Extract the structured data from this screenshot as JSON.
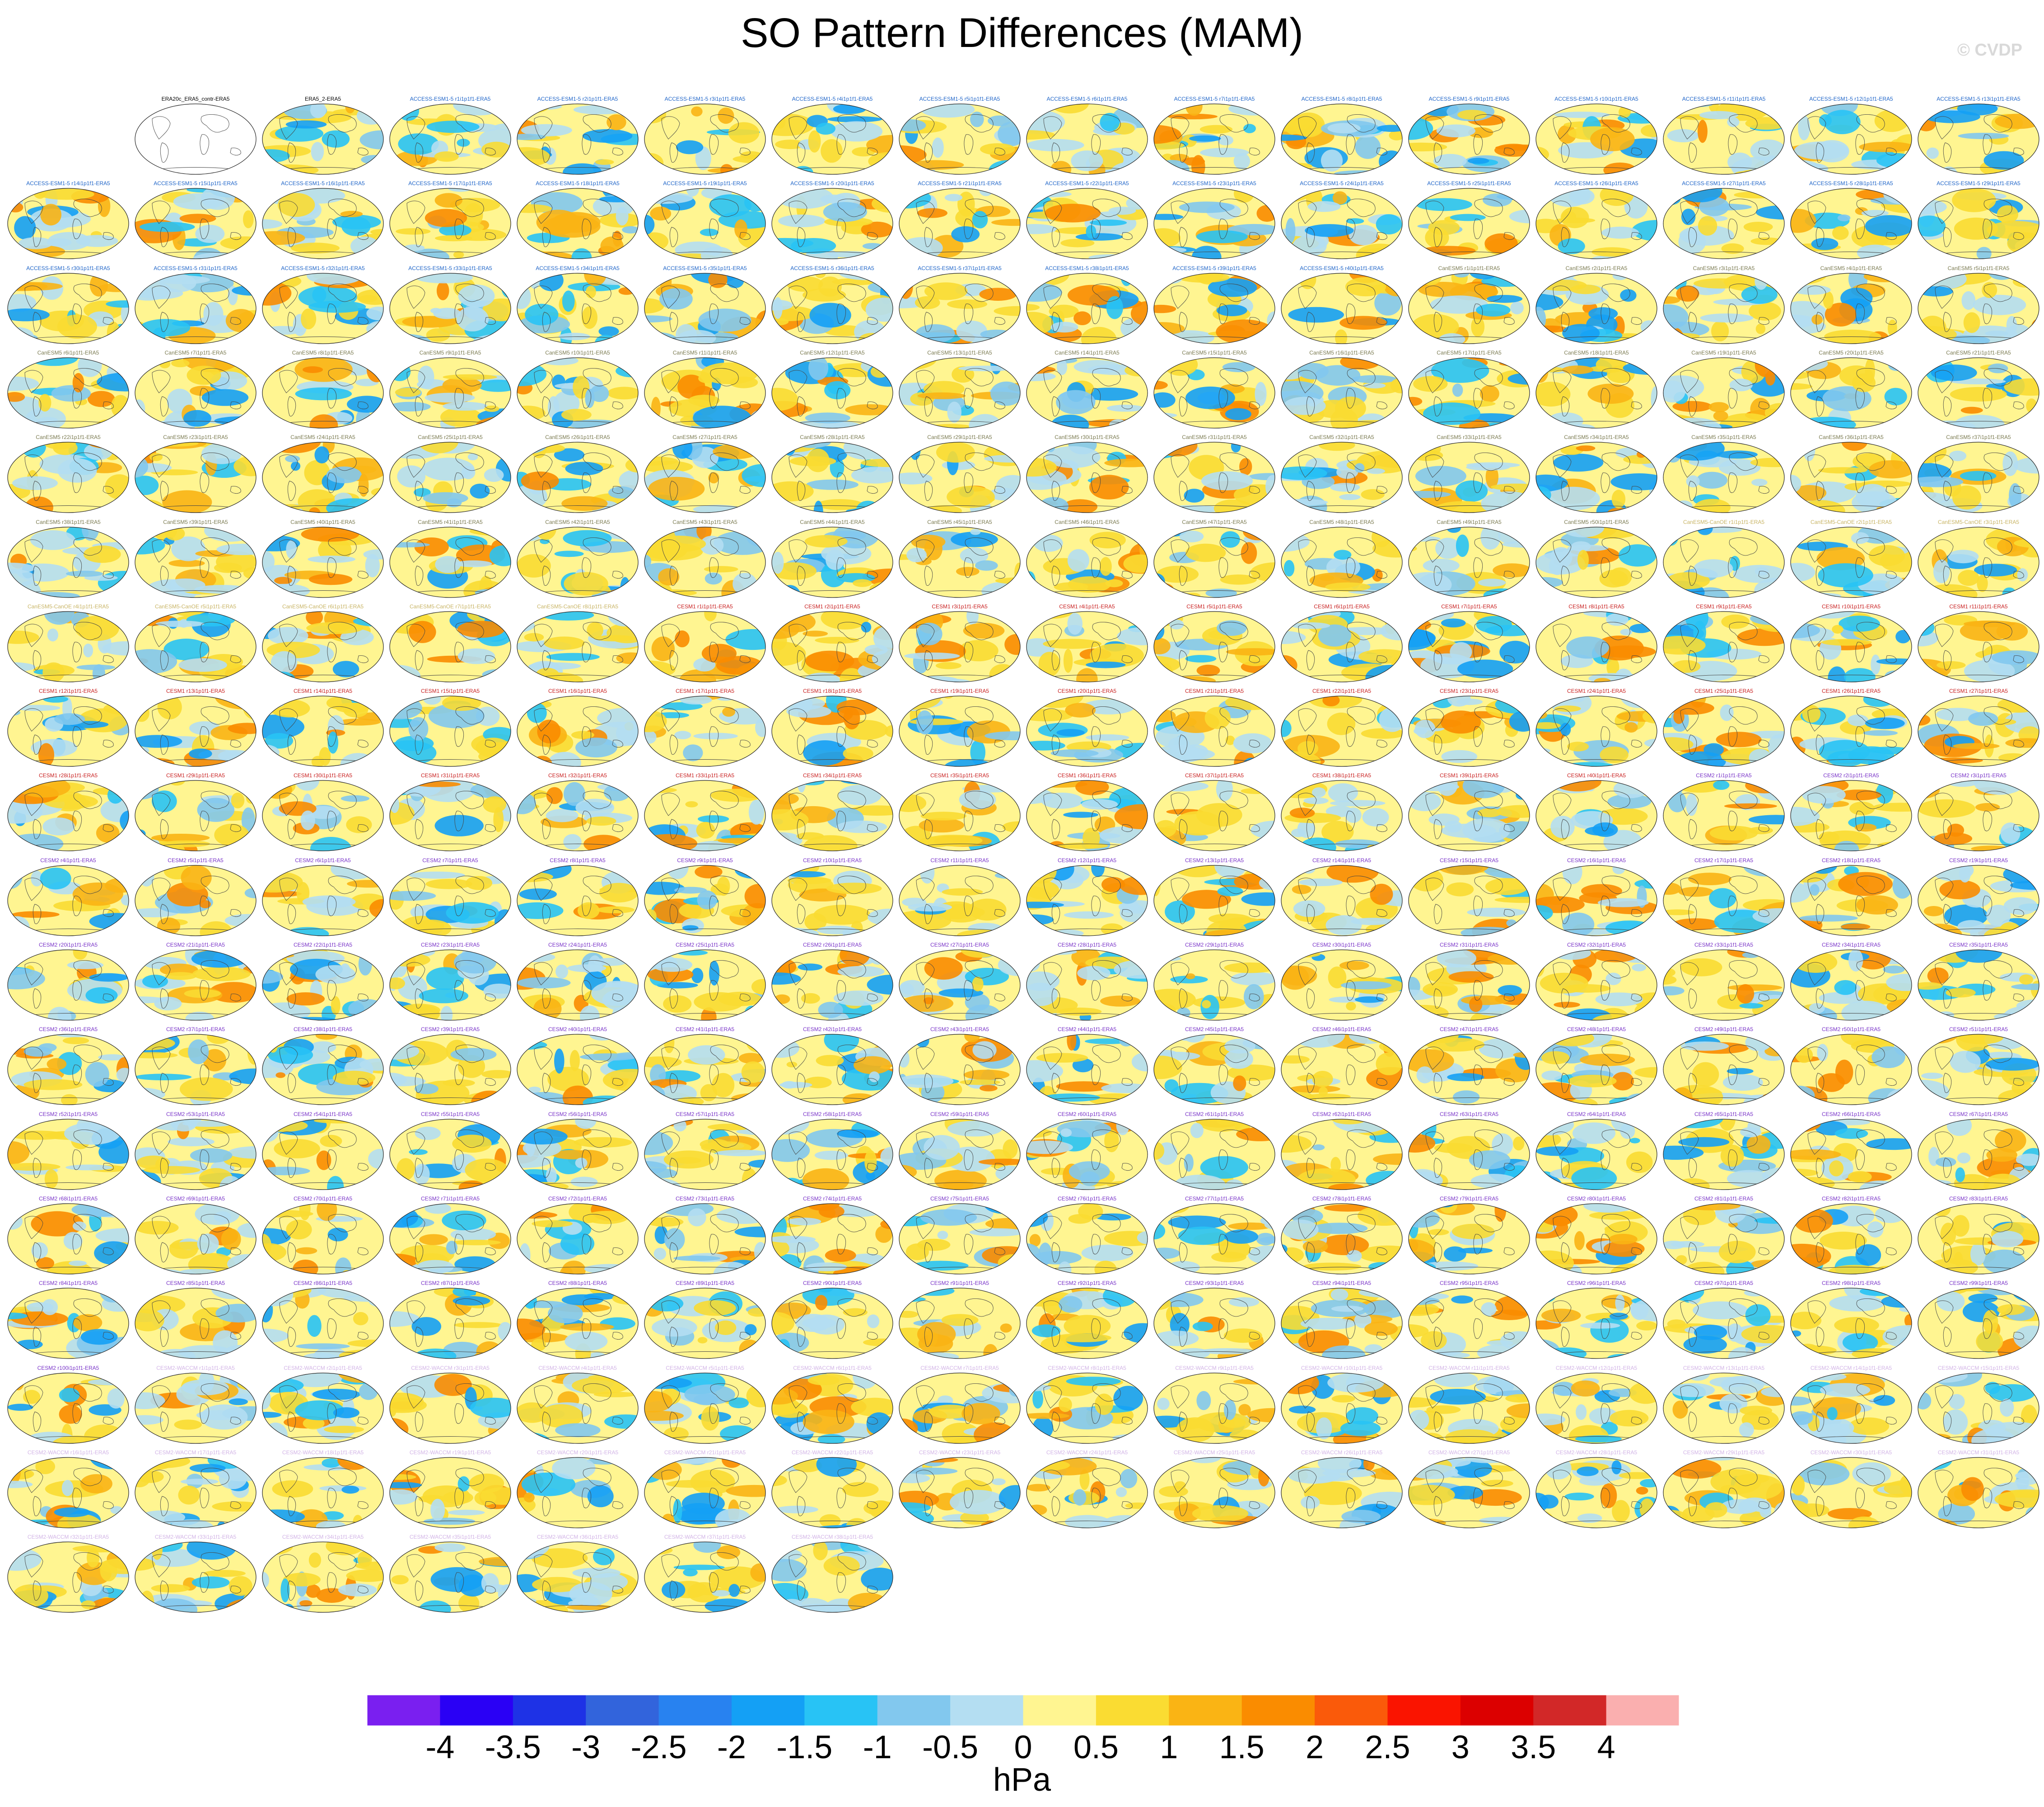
{
  "title": "SO Pattern Differences (MAM)",
  "watermark": "© CVDP",
  "chart_data": {
    "type": "heatmap",
    "title": "SO Pattern Differences (MAM)",
    "projection": "global map panels",
    "grid": {
      "rows": 19,
      "cols": 16,
      "first_row_offset": 1
    },
    "special_panels": [
      {
        "label": "ERA20c_ERA5_contr-ERA5",
        "style": "outline-map"
      },
      {
        "label": "ERA5_2-ERA5",
        "style": "filled-map"
      }
    ],
    "model_groups": [
      {
        "name": "ACCESS-ESM1-5",
        "color": "#1e64c8",
        "count": 40
      },
      {
        "name": "CanESM5",
        "color": "#7a7a50",
        "count": 50
      },
      {
        "name": "CanESM5-CanOE",
        "color": "#c8b464",
        "count": 8
      },
      {
        "name": "CESM1",
        "color": "#c81e1e",
        "count": 40
      },
      {
        "name": "CESM2",
        "color": "#7832c8",
        "count": 100
      },
      {
        "name": "CESM2-WACCM",
        "color": "#d2b4e6",
        "count": 38
      }
    ],
    "colorbar": {
      "label": "hPa",
      "ticks": [
        "-4",
        "-3.5",
        "-3",
        "-2.5",
        "-2",
        "-1.5",
        "-1",
        "-0.5",
        "0",
        "0.5",
        "1",
        "1.5",
        "2",
        "2.5",
        "3",
        "3.5",
        "4"
      ],
      "colors": [
        "#7a1ff0",
        "#2a00f5",
        "#1e32e6",
        "#3264dc",
        "#2882f0",
        "#14a0f5",
        "#28c3f5",
        "#82c8ee",
        "#b4def2",
        "#fff591",
        "#fadc32",
        "#fab414",
        "#fa8c00",
        "#fa5a0a",
        "#fa1400",
        "#dc0000",
        "#d22828",
        "#faafaf"
      ]
    }
  }
}
